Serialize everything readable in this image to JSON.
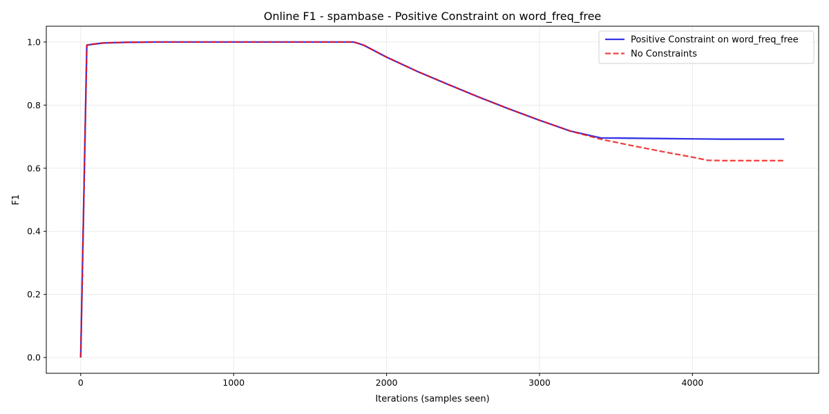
{
  "chart_data": {
    "type": "line",
    "title": "Online F1 - spambase - Positive Constraint on word_freq_free",
    "xlabel": "Iterations (samples seen)",
    "ylabel": "F1",
    "xlim": [
      -225,
      4825
    ],
    "ylim": [
      -0.05,
      1.05
    ],
    "xticks": [
      0,
      1000,
      2000,
      3000,
      4000
    ],
    "yticks": [
      0.0,
      0.2,
      0.4,
      0.6,
      0.8,
      1.0
    ],
    "xtick_labels": [
      "0",
      "1000",
      "2000",
      "3000",
      "4000"
    ],
    "ytick_labels": [
      "0.0",
      "0.2",
      "0.4",
      "0.6",
      "0.8",
      "1.0"
    ],
    "grid": true,
    "legend_position": "top-right",
    "series": [
      {
        "name": "Positive Constraint on word_freq_free",
        "color": "#0000dd",
        "style": "solid",
        "x": [
          0,
          40,
          80,
          150,
          300,
          500,
          800,
          1200,
          1600,
          1780,
          1800,
          1850,
          2000,
          2200,
          2400,
          2600,
          2800,
          3000,
          3200,
          3400,
          3600,
          3800,
          4000,
          4200,
          4400,
          4600
        ],
        "y": [
          0.0,
          0.99,
          0.993,
          0.997,
          0.999,
          1.0,
          1.0,
          1.0,
          1.0,
          1.0,
          0.998,
          0.99,
          0.952,
          0.907,
          0.866,
          0.826,
          0.788,
          0.752,
          0.718,
          0.696,
          0.695,
          0.694,
          0.693,
          0.692,
          0.692,
          0.692
        ]
      },
      {
        "name": "No Constraints",
        "color": "#ee1111",
        "style": "dashed",
        "x": [
          0,
          40,
          80,
          150,
          300,
          500,
          800,
          1200,
          1600,
          1780,
          1800,
          1850,
          2000,
          2200,
          2400,
          2600,
          2800,
          3000,
          3200,
          3400,
          3600,
          3800,
          4000,
          4100,
          4200,
          4400,
          4600
        ],
        "y": [
          0.0,
          0.99,
          0.993,
          0.997,
          0.999,
          1.0,
          1.0,
          1.0,
          1.0,
          1.0,
          0.998,
          0.99,
          0.952,
          0.907,
          0.866,
          0.826,
          0.788,
          0.752,
          0.718,
          0.692,
          0.672,
          0.653,
          0.635,
          0.625,
          0.624,
          0.624,
          0.624
        ]
      }
    ]
  }
}
